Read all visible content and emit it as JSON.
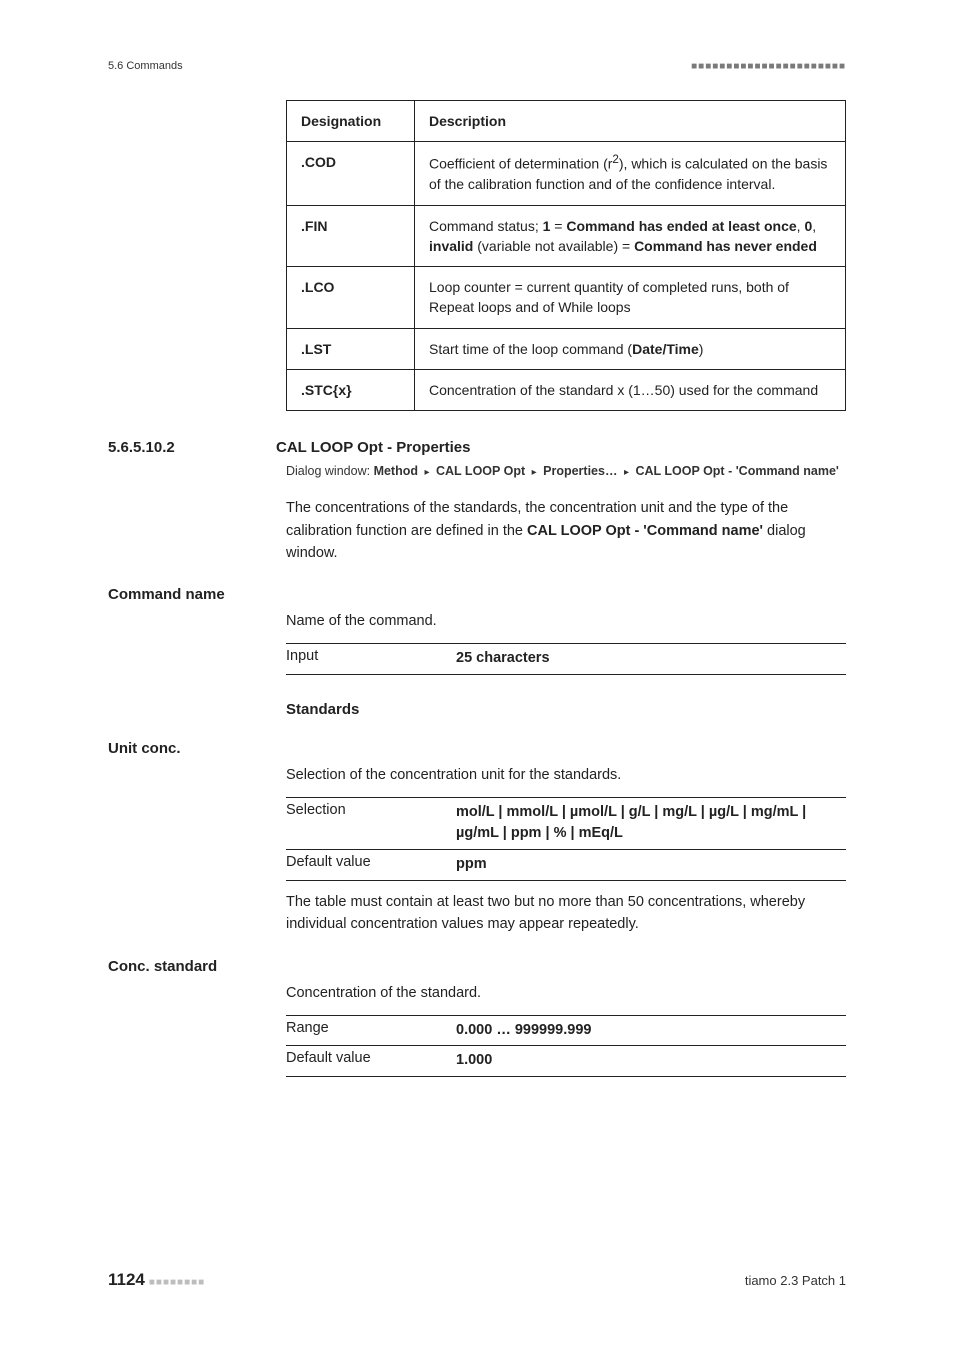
{
  "header": {
    "section_ref": "5.6 Commands",
    "dot_rule": "■■■■■■■■■■■■■■■■■■■■■■"
  },
  "cmd_table": {
    "col1_header": "Designation",
    "col2_header": "Description",
    "rows": [
      {
        "code": ".COD",
        "desc_html": "Coefficient of determination (r<sup>2</sup>), which is calculated on the basis of the calibration function and of the confidence interval."
      },
      {
        "code": ".FIN",
        "desc_html": "Command status; <b>1</b> = <b>Command has ended at least once</b>, <b>0</b>, <b>invalid</b> (variable not available) = <b>Command has never ended</b>"
      },
      {
        "code": ".LCO",
        "desc_html": "Loop counter = current quantity of completed runs, both of Repeat loops and of While loops"
      },
      {
        "code": ".LST",
        "desc_html": "Start time of the loop command (<b>Date/Time</b>)"
      },
      {
        "code": ".STC{x}",
        "desc_html": "Concentration of the standard x (1…50) used for the command"
      }
    ]
  },
  "section": {
    "number": "5.6.5.10.2",
    "title": "CAL LOOP Opt - Properties",
    "dialog_label": "Dialog window:",
    "dialog_path_parts": [
      "Method",
      "CAL LOOP Opt",
      "Properties…",
      "CAL LOOP Opt - 'Command name'"
    ],
    "intro_html": "The concentrations of the standards, the concentration unit and the type of the calibration function are defined in the <b>CAL LOOP Opt - 'Command name'</b> dialog window."
  },
  "fields": {
    "command_name": {
      "label": "Command name",
      "desc": "Name of the command.",
      "kv": [
        {
          "k": "Input",
          "v": "25 characters"
        }
      ]
    },
    "standards_heading": "Standards",
    "unit_conc": {
      "label": "Unit conc.",
      "desc": "Selection of the concentration unit for the standards.",
      "kv": [
        {
          "k": "Selection",
          "v": "mol/L | mmol/L | µmol/L | g/L | mg/L | µg/L | mg/mL | µg/mL | ppm | % | mEq/L"
        },
        {
          "k": "Default value",
          "v": "ppm"
        }
      ],
      "note": "The table must contain at least two but no more than 50 concentrations, whereby individual concentration values may appear repeatedly."
    },
    "conc_standard": {
      "label": "Conc. standard",
      "desc": "Concentration of the standard.",
      "kv": [
        {
          "k": "Range",
          "v": "0.000 … 999999.999"
        },
        {
          "k": "Default value",
          "v": "1.000"
        }
      ]
    }
  },
  "footer": {
    "page": "1124",
    "page_dots": "■■■■■■■■",
    "product": "tiamo 2.3 Patch 1"
  }
}
